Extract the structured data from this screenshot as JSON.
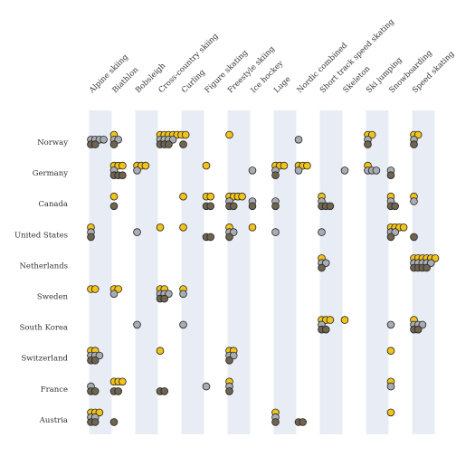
{
  "chart_data": {
    "type": "scatter",
    "title": "",
    "xlabel": "",
    "ylabel": "",
    "sports": [
      "Alpine skiing",
      "Biathlon",
      "Bobsleigh",
      "Cross-country skiing",
      "Curling",
      "Figure skating",
      "Freestyle skiing",
      "Ice hockey",
      "Luge",
      "Nordic combined",
      "Short track speed skating",
      "Skeleton",
      "Ski jumping",
      "Snowboarding",
      "Speed skating"
    ],
    "countries": [
      "Norway",
      "Germany",
      "Canada",
      "United States",
      "Netherlands",
      "Sweden",
      "South Korea",
      "Switzerland",
      "France",
      "Austria"
    ],
    "medal_colors": {
      "gold": "#f2c318",
      "silver": "#a9adb3",
      "bronze": "#6e6450"
    },
    "medals": {
      "Norway": {
        "Alpine skiing": [
          0,
          4,
          2
        ],
        "Biathlon": [
          1,
          2,
          1
        ],
        "Cross-country skiing": [
          7,
          4,
          3
        ],
        "Curling": [
          0,
          0,
          1
        ],
        "Freestyle skiing": [
          1,
          0,
          0
        ],
        "Nordic combined": [
          0,
          1,
          0
        ],
        "Ski jumping": [
          2,
          1,
          1
        ],
        "Speed skating": [
          2,
          1,
          1
        ]
      },
      "Germany": {
        "Biathlon": [
          3,
          1,
          3
        ],
        "Bobsleigh": [
          3,
          1,
          0
        ],
        "Figure skating": [
          1,
          0,
          0
        ],
        "Ice hockey": [
          0,
          1,
          0
        ],
        "Luge": [
          3,
          1,
          1
        ],
        "Nordic combined": [
          3,
          1,
          0
        ],
        "Skeleton": [
          0,
          1,
          0
        ],
        "Ski jumping": [
          1,
          3,
          0
        ],
        "Snowboarding": [
          0,
          1,
          1
        ]
      },
      "Canada": {
        "Biathlon": [
          1,
          0,
          1
        ],
        "Curling": [
          1,
          0,
          0
        ],
        "Figure skating": [
          2,
          0,
          2
        ],
        "Freestyle skiing": [
          4,
          1,
          2
        ],
        "Ice hockey": [
          0,
          1,
          1
        ],
        "Luge": [
          0,
          1,
          1
        ],
        "Short track speed skating": [
          1,
          1,
          3
        ],
        "Snowboarding": [
          1,
          1,
          2
        ],
        "Speed skating": [
          1,
          1,
          0
        ]
      },
      "United States": {
        "Alpine skiing": [
          1,
          1,
          1
        ],
        "Bobsleigh": [
          0,
          1,
          0
        ],
        "Cross-country skiing": [
          1,
          0,
          0
        ],
        "Curling": [
          1,
          0,
          0
        ],
        "Figure skating": [
          0,
          0,
          2
        ],
        "Freestyle skiing": [
          1,
          2,
          1
        ],
        "Ice hockey": [
          1,
          0,
          0
        ],
        "Luge": [
          0,
          1,
          0
        ],
        "Short track speed skating": [
          0,
          1,
          0
        ],
        "Snowboarding": [
          4,
          2,
          1
        ],
        "Speed skating": [
          0,
          0,
          1
        ]
      },
      "Netherlands": {
        "Short track speed skating": [
          1,
          2,
          1
        ],
        "Speed skating": [
          6,
          5,
          4
        ]
      },
      "Sweden": {
        "Alpine skiing": [
          2,
          0,
          0
        ],
        "Biathlon": [
          2,
          1,
          0
        ],
        "Cross-country skiing": [
          2,
          3,
          2
        ],
        "Curling": [
          1,
          1,
          0
        ]
      },
      "South Korea": {
        "Bobsleigh": [
          0,
          1,
          0
        ],
        "Curling": [
          0,
          1,
          0
        ],
        "Short track speed skating": [
          3,
          1,
          2
        ],
        "Skeleton": [
          1,
          0,
          0
        ],
        "Snowboarding": [
          0,
          1,
          0
        ],
        "Speed skating": [
          1,
          3,
          2
        ]
      },
      "Switzerland": {
        "Alpine skiing": [
          2,
          3,
          2
        ],
        "Cross-country skiing": [
          1,
          0,
          0
        ],
        "Freestyle skiing": [
          2,
          2,
          1
        ],
        "Snowboarding": [
          1,
          0,
          0
        ]
      },
      "France": {
        "Alpine skiing": [
          0,
          1,
          2
        ],
        "Biathlon": [
          3,
          0,
          2
        ],
        "Cross-country skiing": [
          0,
          0,
          2
        ],
        "Figure skating": [
          0,
          1,
          0
        ],
        "Freestyle skiing": [
          1,
          1,
          1
        ],
        "Snowboarding": [
          1,
          1,
          0
        ]
      },
      "Austria": {
        "Alpine skiing": [
          3,
          2,
          2
        ],
        "Biathlon": [
          0,
          0,
          1
        ],
        "Luge": [
          1,
          1,
          1
        ],
        "Nordic combined": [
          0,
          0,
          2
        ],
        "Snowboarding": [
          1,
          0,
          0
        ]
      }
    }
  }
}
